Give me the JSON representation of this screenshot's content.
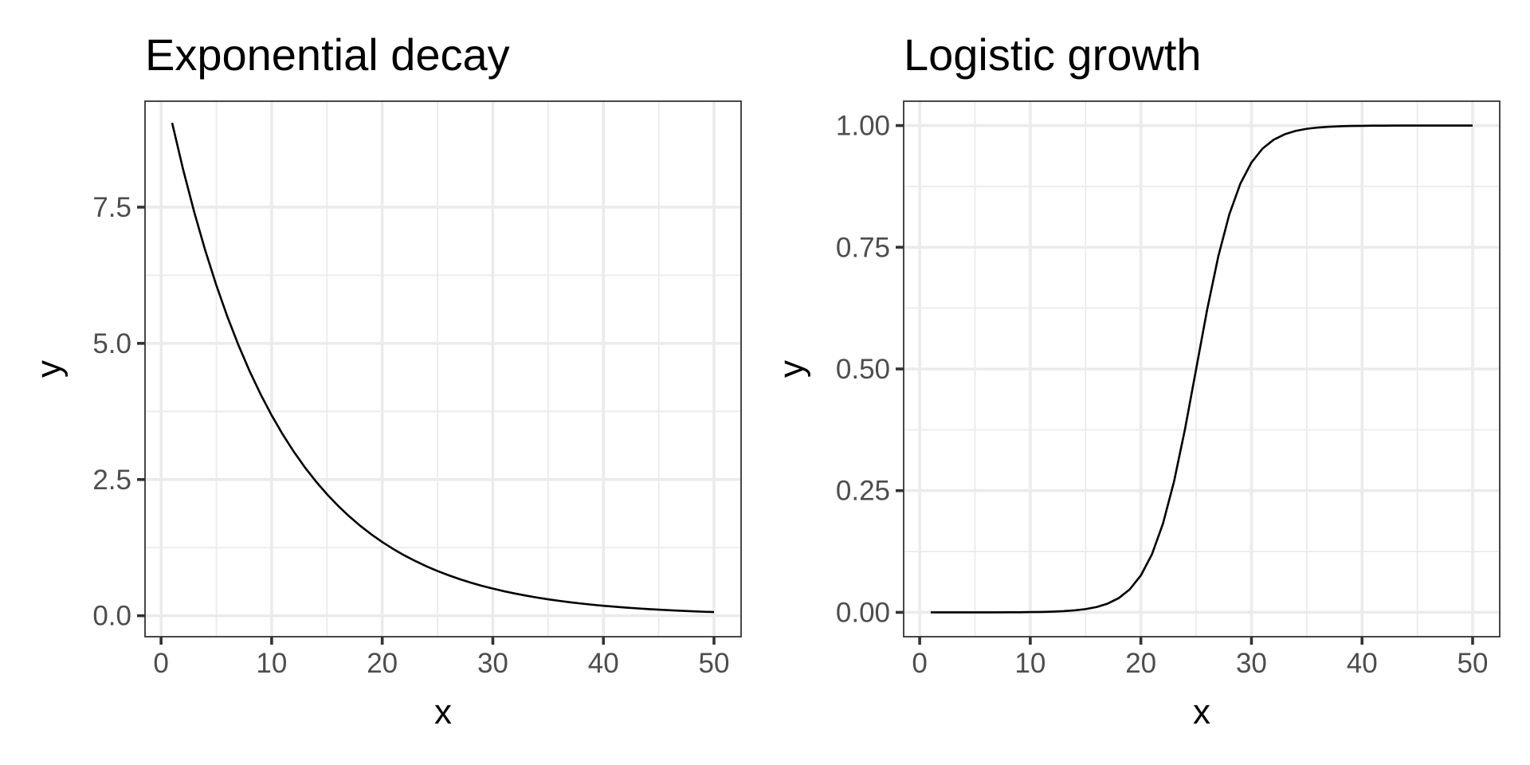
{
  "chart_data": [
    {
      "type": "line",
      "title": "Exponential decay",
      "xlabel": "x",
      "ylabel": "y",
      "xlim": [
        -1.45,
        52.45
      ],
      "ylim": [
        -0.385,
        9.445
      ],
      "xticks": [
        0,
        10,
        20,
        30,
        40,
        50
      ],
      "xtick_labels": [
        "0",
        "10",
        "20",
        "30",
        "40",
        "50"
      ],
      "yticks": [
        0,
        2.5,
        5,
        7.5
      ],
      "ytick_labels": [
        "0.0",
        "2.5",
        "5.0",
        "7.5"
      ],
      "grid": true,
      "series": [
        {
          "function": "10*exp(-0.1*x)",
          "x": [
            1,
            2,
            3,
            4,
            5,
            6,
            7,
            8,
            9,
            10,
            11,
            12,
            13,
            14,
            15,
            16,
            17,
            18,
            19,
            20,
            21,
            22,
            23,
            24,
            25,
            26,
            27,
            28,
            29,
            30,
            31,
            32,
            33,
            34,
            35,
            36,
            37,
            38,
            39,
            40,
            41,
            42,
            43,
            44,
            45,
            46,
            47,
            48,
            49,
            50
          ],
          "values": [
            9.048,
            8.187,
            7.408,
            6.703,
            6.065,
            5.488,
            4.966,
            4.493,
            4.066,
            3.679,
            3.329,
            3.012,
            2.725,
            2.466,
            2.231,
            2.019,
            1.827,
            1.653,
            1.496,
            1.353,
            1.225,
            1.108,
            1.003,
            0.907,
            0.821,
            0.743,
            0.672,
            0.608,
            0.55,
            0.498,
            0.45,
            0.408,
            0.369,
            0.334,
            0.302,
            0.273,
            0.247,
            0.224,
            0.202,
            0.183,
            0.166,
            0.15,
            0.136,
            0.123,
            0.111,
            0.101,
            0.091,
            0.082,
            0.074,
            0.067
          ]
        }
      ]
    },
    {
      "type": "line",
      "title": "Logistic growth",
      "xlabel": "x",
      "ylabel": "y",
      "xlim": [
        -1.45,
        52.45
      ],
      "ylim": [
        -0.05,
        1.05
      ],
      "xticks": [
        0,
        10,
        20,
        30,
        40,
        50
      ],
      "xtick_labels": [
        "0",
        "10",
        "20",
        "30",
        "40",
        "50"
      ],
      "yticks": [
        0,
        0.25,
        0.5,
        0.75,
        1
      ],
      "ytick_labels": [
        "0.00",
        "0.25",
        "0.50",
        "0.75",
        "1.00"
      ],
      "grid": true,
      "series": [
        {
          "function": "1/(1+exp(-0.5*(x-25)))",
          "x": [
            1,
            2,
            3,
            4,
            5,
            6,
            7,
            8,
            9,
            10,
            11,
            12,
            13,
            14,
            15,
            16,
            17,
            18,
            19,
            20,
            21,
            22,
            23,
            24,
            25,
            26,
            27,
            28,
            29,
            30,
            31,
            32,
            33,
            34,
            35,
            36,
            37,
            38,
            39,
            40,
            41,
            42,
            43,
            44,
            45,
            46,
            47,
            48,
            49,
            50
          ],
          "values": [
            0,
            0,
            0,
            0,
            0,
            0.0001,
            0.0001,
            0.0002,
            0.0003,
            0.0006,
            0.0009,
            0.0015,
            0.0025,
            0.0041,
            0.0067,
            0.011,
            0.018,
            0.0293,
            0.0474,
            0.0759,
            0.1192,
            0.1824,
            0.2689,
            0.3775,
            0.5,
            0.6225,
            0.7311,
            0.8176,
            0.8808,
            0.9241,
            0.9526,
            0.9707,
            0.982,
            0.989,
            0.9933,
            0.9959,
            0.9975,
            0.9985,
            0.9991,
            0.9994,
            0.9997,
            0.9998,
            0.9999,
            0.9999,
            1,
            1,
            1,
            1,
            1,
            1
          ]
        }
      ]
    }
  ]
}
